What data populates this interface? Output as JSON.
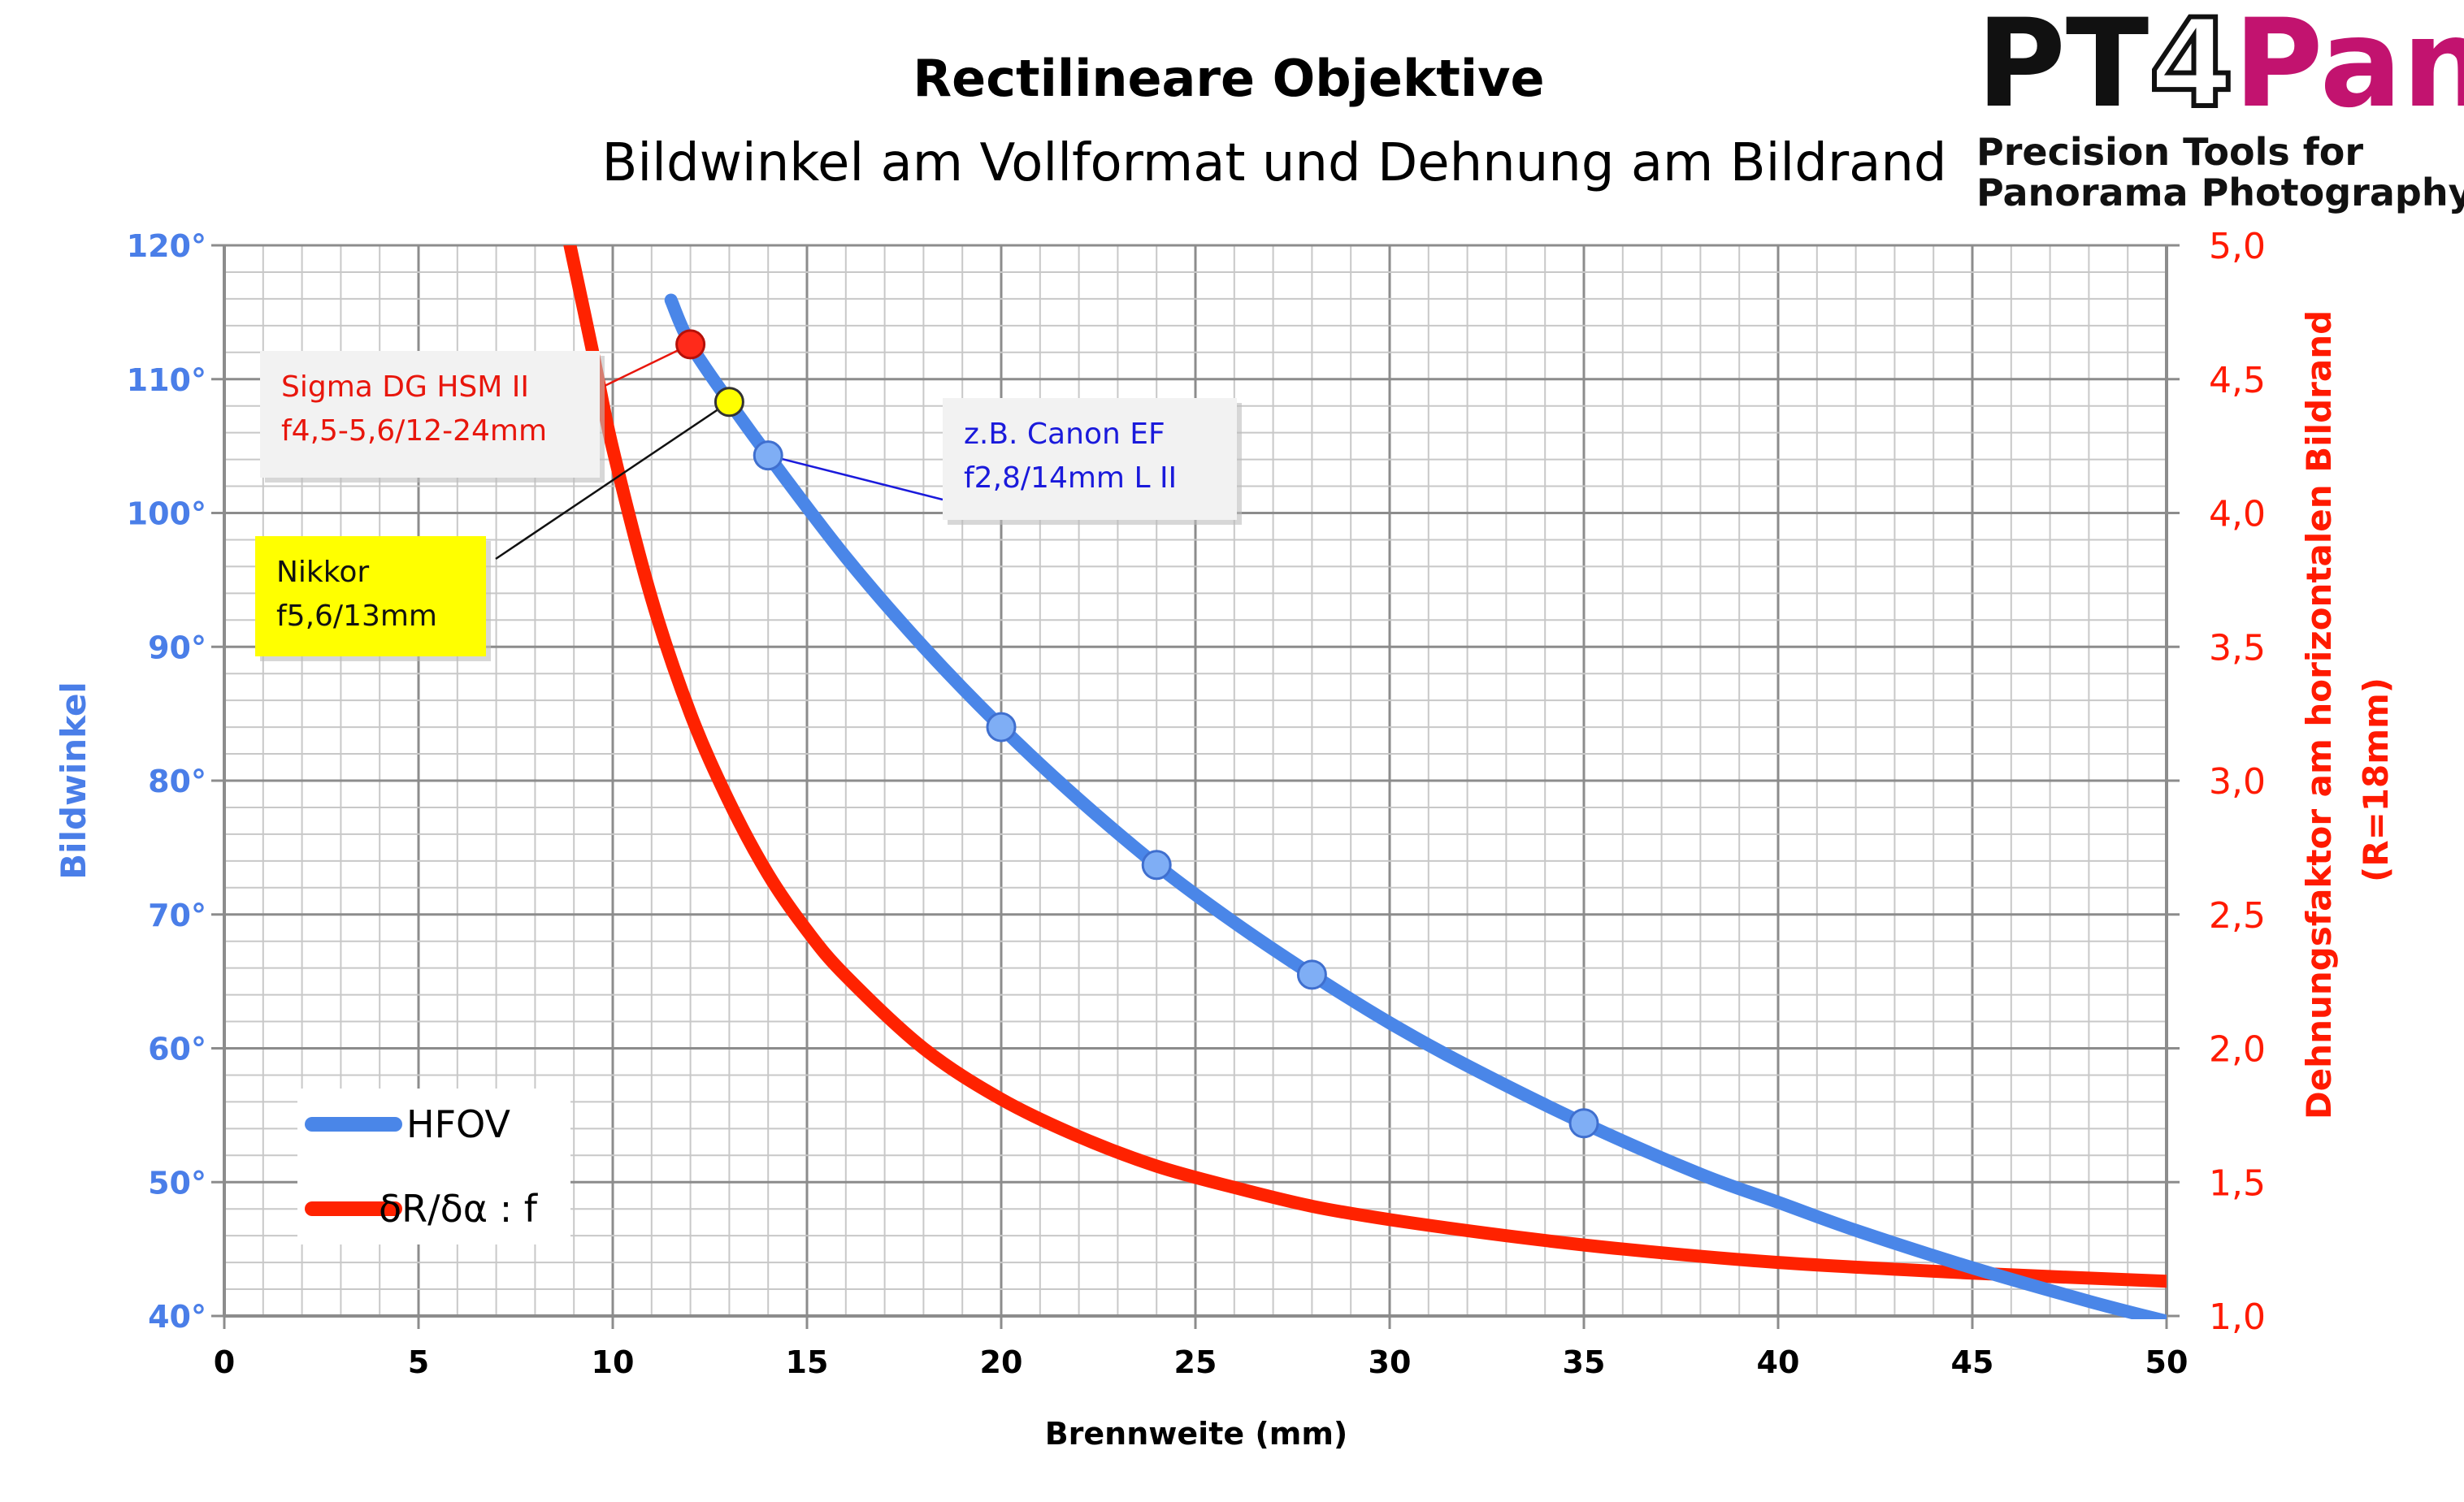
{
  "chart_data": {
    "type": "line",
    "title": "Rectilineare Objektive",
    "subtitle": "Bildwinkel am Vollformat und Dehnung am Bildrand",
    "xlabel": "Brennweite (mm)",
    "ylabel_left": "Bildwinkel",
    "ylabel_right": [
      "Dehnungsfaktor am horizontalen Bildrand",
      "(R=18mm)"
    ],
    "xlim": [
      0,
      50
    ],
    "ylim_left": [
      40,
      120
    ],
    "ylim_right": [
      1.0,
      5.0
    ],
    "grid": true,
    "legend_position": "bottom-left",
    "x_ticks": [
      "0",
      "5",
      "10",
      "15",
      "20",
      "25",
      "30",
      "35",
      "40",
      "45",
      "50"
    ],
    "y_left_ticks": [
      "40°",
      "50°",
      "60°",
      "70°",
      "80°",
      "90°",
      "100°",
      "110°",
      "120°"
    ],
    "y_right_ticks": [
      "1,0",
      "1,5",
      "2,0",
      "2,5",
      "3,0",
      "3,5",
      "4,0",
      "4,5",
      "5,0"
    ],
    "series": [
      {
        "name": "HFOV",
        "axis": "left",
        "color": "#4a86e8",
        "x": [
          11.5,
          12,
          13,
          14,
          16,
          18,
          20,
          22,
          24,
          26,
          28,
          30,
          32,
          35,
          38,
          40,
          42,
          45,
          48,
          50
        ],
        "values": [
          115.9,
          112.6,
          108.3,
          104.3,
          96.7,
          90.0,
          84.0,
          78.6,
          73.7,
          69.4,
          65.5,
          61.9,
          58.7,
          54.4,
          50.6,
          48.5,
          46.4,
          43.6,
          41.1,
          39.6
        ]
      },
      {
        "name": "δR/δα : f",
        "axis": "right",
        "color": "#ff2200",
        "x": [
          8.9,
          9.5,
          10,
          11,
          12,
          13,
          14,
          15,
          16,
          18,
          20,
          22,
          24,
          26,
          28,
          30,
          33,
          36,
          40,
          45,
          50
        ],
        "values": [
          5.0,
          4.59,
          4.24,
          3.68,
          3.25,
          2.92,
          2.65,
          2.44,
          2.27,
          2.0,
          1.81,
          1.67,
          1.56,
          1.48,
          1.41,
          1.36,
          1.3,
          1.25,
          1.2,
          1.16,
          1.13
        ]
      }
    ],
    "markers": [
      {
        "x": 14,
        "y": 104.3,
        "style": "blue"
      },
      {
        "x": 20,
        "y": 84.0,
        "style": "blue"
      },
      {
        "x": 24,
        "y": 73.7,
        "style": "blue"
      },
      {
        "x": 28,
        "y": 65.5,
        "style": "blue"
      },
      {
        "x": 35,
        "y": 54.4,
        "style": "blue"
      },
      {
        "x": 12,
        "y": 112.6,
        "style": "red"
      },
      {
        "x": 13,
        "y": 108.3,
        "style": "yellow"
      }
    ],
    "annotations": [
      {
        "lines": [
          "Sigma DG HSM II",
          "f4,5-5,6/12-24mm"
        ],
        "color": "#e8160c",
        "bg": "#f2f2f2",
        "target_x": 12,
        "target_y": 112.6
      },
      {
        "lines": [
          "z.B. Canon EF",
          "f2,8/14mm L II"
        ],
        "color": "#1a1adb",
        "bg": "#f2f2f2",
        "target_x": 14,
        "target_y": 104.3
      },
      {
        "lines": [
          "Nikkor",
          "f5,6/13mm"
        ],
        "color": "#111111",
        "bg": "#ffff00",
        "target_x": 13,
        "target_y": 108.3
      }
    ]
  },
  "logo": {
    "part1": "PT",
    "part2": "4",
    "part3": "Pano",
    "tagline1": "Precision Tools for",
    "tagline2": "Panorama Photography",
    "colors": {
      "dark": "#111111",
      "magenta": "#c2136f"
    }
  }
}
